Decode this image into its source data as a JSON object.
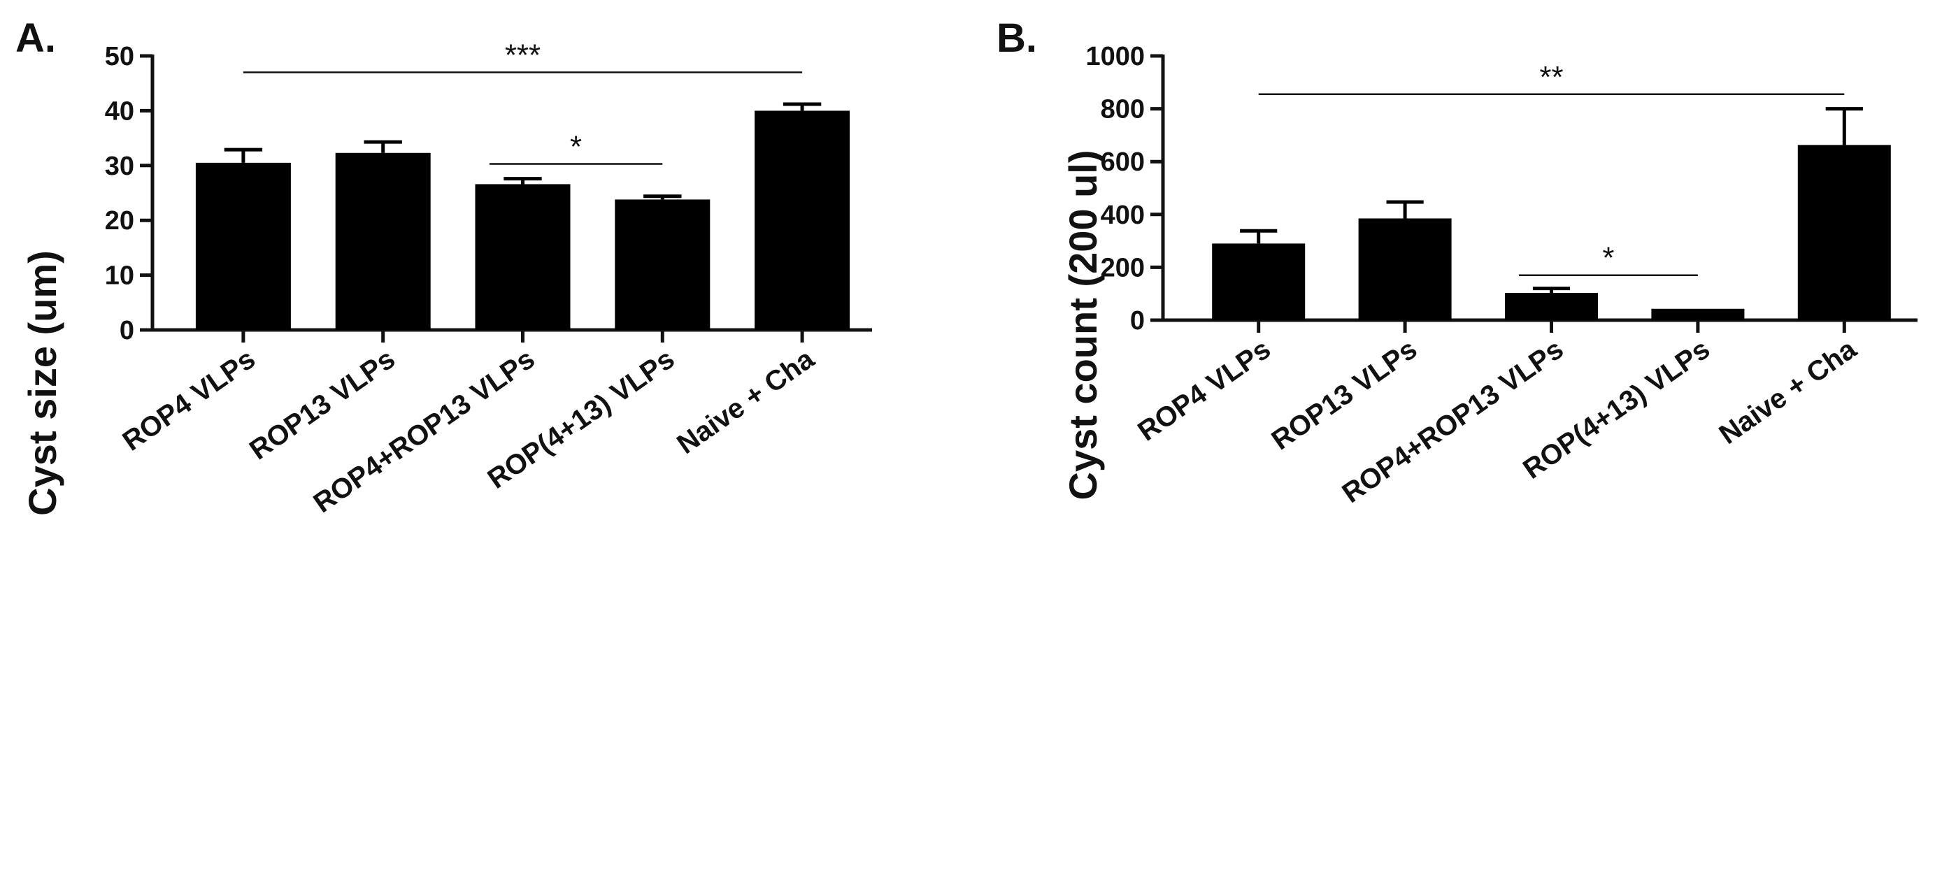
{
  "chart_data": [
    {
      "panel_label": "A.",
      "type": "bar",
      "ylabel": "Cyst size (um)",
      "ylim": [
        0,
        50
      ],
      "yticks": [
        "0",
        "10",
        "20",
        "30",
        "40",
        "50"
      ],
      "categories": [
        "ROP4 VLPs",
        "ROP13 VLPs",
        "ROP4+ROP13 VLPs",
        "ROP(4+13) VLPs",
        "Naive + Cha"
      ],
      "values": [
        30.5,
        32.3,
        26.6,
        23.8,
        40.0
      ],
      "errors": [
        2.4,
        2.0,
        1.0,
        0.6,
        1.2
      ],
      "significance": [
        {
          "from": 0,
          "to": 4,
          "label": "***",
          "y": 47.0
        },
        {
          "from": 2,
          "to": 3,
          "label": "*",
          "y": 30.3
        }
      ]
    },
    {
      "panel_label": "B.",
      "type": "bar",
      "ylabel": "Cyst count (200 ul)",
      "ylim": [
        0,
        1000
      ],
      "yticks": [
        "0",
        "200",
        "400",
        "600",
        "800",
        "1000"
      ],
      "categories": [
        "ROP4 VLPs",
        "ROP13 VLPs",
        "ROP4+ROP13 VLPs",
        "ROP(4+13) VLPs",
        "Naive + Cha"
      ],
      "values": [
        290,
        385,
        103,
        43,
        663
      ],
      "errors": [
        48,
        62,
        17,
        0,
        137
      ],
      "significance": [
        {
          "from": 0,
          "to": 4,
          "label": "**",
          "y": 855
        },
        {
          "from": 2,
          "to": 3,
          "label": "*",
          "y": 170
        }
      ]
    }
  ]
}
